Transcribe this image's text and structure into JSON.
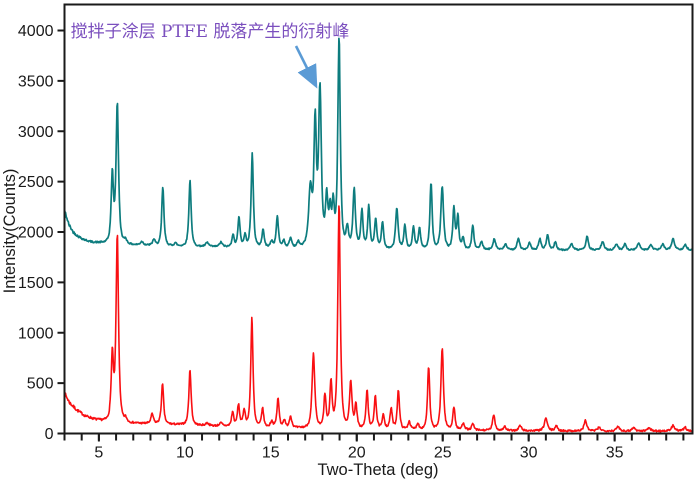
{
  "figure": {
    "background": "#ffffff",
    "border_color": "#1a1a1a",
    "tick_color": "#1a1a1a"
  },
  "annotation": {
    "text": "搅拌子涂层 PTFE 脱落产生的衍射峰",
    "color": "#7b4fbe",
    "arrow_color": "#5b9bd5",
    "points_to_two_theta": 17.86
  },
  "chart_data": {
    "type": "line",
    "title": "",
    "xlabel": "Two-Theta (deg)",
    "ylabel": "Intensity(Counts)",
    "xlim": [
      3,
      39.5
    ],
    "ylim": [
      0,
      4000
    ],
    "x_major_ticks": [
      5,
      10,
      15,
      20,
      25,
      30,
      35
    ],
    "x_minor_tick_step": 1,
    "y_ticks": [
      0,
      500,
      1000,
      1500,
      2000,
      2500,
      3000,
      3500,
      4000
    ],
    "grid": false,
    "legend": "none",
    "series": [
      {
        "name": "upper-pattern-teal",
        "color": "#0d7c7e",
        "line_width": 1.7,
        "noise_amplitude": 7,
        "start_noise_extra": 8,
        "seed": 42,
        "baseline_anchors": [
          [
            3,
            2215
          ],
          [
            3.25,
            2075
          ],
          [
            3.5,
            2000
          ],
          [
            3.8,
            1955
          ],
          [
            4.2,
            1920
          ],
          [
            4.6,
            1900
          ],
          [
            5.5,
            1888
          ],
          [
            7,
            1872
          ],
          [
            9,
            1862
          ],
          [
            11,
            1856
          ],
          [
            13,
            1850
          ],
          [
            15,
            1846
          ],
          [
            17,
            1842
          ],
          [
            19,
            1838
          ],
          [
            21,
            1834
          ],
          [
            23,
            1830
          ],
          [
            25,
            1826
          ],
          [
            27,
            1824
          ],
          [
            29,
            1822
          ],
          [
            32,
            1820
          ],
          [
            36,
            1820
          ],
          [
            39.5,
            1822
          ]
        ],
        "peaks": [
          [
            5.78,
            680,
            0.09
          ],
          [
            6.07,
            1385,
            0.1
          ],
          [
            6.55,
            45,
            0.1
          ],
          [
            7.5,
            35,
            0.12
          ],
          [
            8.2,
            60,
            0.1
          ],
          [
            8.72,
            580,
            0.09
          ],
          [
            9.45,
            30,
            0.1
          ],
          [
            10.3,
            660,
            0.09
          ],
          [
            11.3,
            40,
            0.12
          ],
          [
            12.1,
            45,
            0.12
          ],
          [
            12.8,
            120,
            0.09
          ],
          [
            13.15,
            295,
            0.09
          ],
          [
            13.5,
            115,
            0.09
          ],
          [
            13.92,
            930,
            0.09
          ],
          [
            14.55,
            175,
            0.09
          ],
          [
            15.05,
            60,
            0.1
          ],
          [
            15.38,
            310,
            0.09
          ],
          [
            15.75,
            70,
            0.09
          ],
          [
            16.15,
            95,
            0.1
          ],
          [
            16.6,
            55,
            0.1
          ],
          [
            17.3,
            560,
            0.14
          ],
          [
            17.58,
            1190,
            0.1
          ],
          [
            17.86,
            1550,
            0.11
          ],
          [
            18.25,
            480,
            0.1
          ],
          [
            18.45,
            330,
            0.09
          ],
          [
            18.63,
            400,
            0.09
          ],
          [
            18.97,
            2078,
            0.1
          ],
          [
            19.45,
            200,
            0.1
          ],
          [
            19.85,
            585,
            0.1
          ],
          [
            20.3,
            370,
            0.09
          ],
          [
            20.7,
            415,
            0.09
          ],
          [
            21.1,
            295,
            0.09
          ],
          [
            21.5,
            265,
            0.09
          ],
          [
            22.33,
            405,
            0.1
          ],
          [
            22.8,
            230,
            0.09
          ],
          [
            23.3,
            215,
            0.09
          ],
          [
            23.65,
            215,
            0.09
          ],
          [
            24.32,
            660,
            0.09
          ],
          [
            24.97,
            615,
            0.11
          ],
          [
            25.65,
            410,
            0.09
          ],
          [
            25.88,
            330,
            0.08
          ],
          [
            26.18,
            120,
            0.09
          ],
          [
            26.75,
            240,
            0.09
          ],
          [
            27.25,
            80,
            0.1
          ],
          [
            28.0,
            110,
            0.11
          ],
          [
            28.65,
            60,
            0.1
          ],
          [
            29.4,
            110,
            0.11
          ],
          [
            30.05,
            70,
            0.1
          ],
          [
            30.65,
            110,
            0.1
          ],
          [
            31.1,
            150,
            0.1
          ],
          [
            31.55,
            80,
            0.1
          ],
          [
            32.5,
            60,
            0.12
          ],
          [
            33.4,
            140,
            0.1
          ],
          [
            34.3,
            80,
            0.12
          ],
          [
            35.1,
            60,
            0.12
          ],
          [
            35.6,
            65,
            0.1
          ],
          [
            36.4,
            70,
            0.12
          ],
          [
            37.1,
            50,
            0.12
          ],
          [
            37.8,
            55,
            0.12
          ],
          [
            38.4,
            110,
            0.12
          ],
          [
            39.1,
            50,
            0.12
          ]
        ]
      },
      {
        "name": "lower-pattern-red",
        "color": "#f90f12",
        "line_width": 1.6,
        "noise_amplitude": 9,
        "start_noise_extra": 10,
        "seed": 7,
        "baseline_anchors": [
          [
            3,
            400
          ],
          [
            3.3,
            305
          ],
          [
            3.7,
            235
          ],
          [
            4.2,
            175
          ],
          [
            4.8,
            140
          ],
          [
            5.5,
            120
          ],
          [
            6.5,
            105
          ],
          [
            8,
            98
          ],
          [
            10,
            88
          ],
          [
            12,
            75
          ],
          [
            14,
            65
          ],
          [
            16,
            57
          ],
          [
            18,
            52
          ],
          [
            20,
            48
          ],
          [
            22,
            44
          ],
          [
            24,
            40
          ],
          [
            26,
            35
          ],
          [
            28,
            30
          ],
          [
            30,
            28
          ],
          [
            33,
            26
          ],
          [
            36,
            25
          ],
          [
            39.5,
            25
          ]
        ],
        "peaks": [
          [
            5.78,
            650,
            0.09
          ],
          [
            6.07,
            1850,
            0.1
          ],
          [
            6.55,
            40,
            0.1
          ],
          [
            8.1,
            95,
            0.1
          ],
          [
            8.7,
            395,
            0.09
          ],
          [
            10.3,
            550,
            0.09
          ],
          [
            11.3,
            25,
            0.12
          ],
          [
            12.1,
            30,
            0.12
          ],
          [
            12.78,
            140,
            0.09
          ],
          [
            13.12,
            215,
            0.09
          ],
          [
            13.45,
            165,
            0.09
          ],
          [
            13.9,
            1090,
            0.09
          ],
          [
            14.52,
            185,
            0.09
          ],
          [
            15.05,
            60,
            0.1
          ],
          [
            15.42,
            285,
            0.09
          ],
          [
            15.78,
            75,
            0.09
          ],
          [
            16.15,
            115,
            0.1
          ],
          [
            17.48,
            735,
            0.11
          ],
          [
            18.15,
            325,
            0.09
          ],
          [
            18.5,
            450,
            0.09
          ],
          [
            18.97,
            2225,
            0.1
          ],
          [
            19.65,
            460,
            0.1
          ],
          [
            19.95,
            230,
            0.09
          ],
          [
            20.6,
            375,
            0.09
          ],
          [
            21.08,
            330,
            0.09
          ],
          [
            21.55,
            140,
            0.09
          ],
          [
            22.0,
            205,
            0.09
          ],
          [
            22.42,
            385,
            0.09
          ],
          [
            23.05,
            80,
            0.09
          ],
          [
            23.55,
            60,
            0.09
          ],
          [
            24.18,
            620,
            0.09
          ],
          [
            24.97,
            815,
            0.1
          ],
          [
            25.65,
            225,
            0.09
          ],
          [
            26.2,
            70,
            0.1
          ],
          [
            26.75,
            60,
            0.1
          ],
          [
            27.97,
            155,
            0.1
          ],
          [
            28.6,
            40,
            0.1
          ],
          [
            29.5,
            50,
            0.11
          ],
          [
            31.0,
            125,
            0.12
          ],
          [
            31.6,
            50,
            0.1
          ],
          [
            33.3,
            105,
            0.11
          ],
          [
            34.1,
            35,
            0.12
          ],
          [
            35.2,
            45,
            0.12
          ],
          [
            36.1,
            35,
            0.12
          ],
          [
            37.0,
            35,
            0.12
          ],
          [
            38.4,
            55,
            0.12
          ],
          [
            39.1,
            35,
            0.12
          ]
        ]
      }
    ]
  }
}
